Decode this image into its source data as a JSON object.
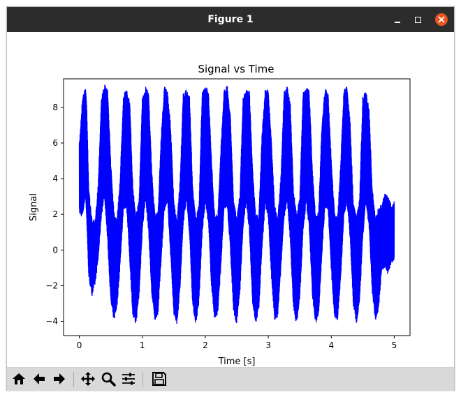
{
  "window": {
    "title": "Figure 1"
  },
  "toolbar": {
    "buttons": [
      {
        "name": "home-icon"
      },
      {
        "name": "back-arrow-icon"
      },
      {
        "name": "forward-arrow-icon"
      },
      {
        "name": "pan-move-icon"
      },
      {
        "name": "zoom-magnifier-icon"
      },
      {
        "name": "configure-subplots-icon"
      },
      {
        "name": "save-floppy-icon"
      }
    ]
  },
  "colors": {
    "titlebar": "#2c2c2c",
    "close": "#e95420",
    "series": "#0000ff",
    "toolbar": "#d9d9d9"
  },
  "chart_data": {
    "type": "line",
    "title": "Signal vs Time",
    "xlabel": "Time [s]",
    "ylabel": "Signal",
    "xlim": [
      -0.25,
      5.25
    ],
    "ylim": [
      -4.8,
      9.6
    ],
    "x_ticks": [
      0,
      1,
      2,
      3,
      4,
      5
    ],
    "x_tick_labels": [
      "0",
      "1",
      "2",
      "3",
      "4",
      "5"
    ],
    "y_ticks": [
      -4,
      -2,
      0,
      2,
      4,
      6,
      8
    ],
    "y_tick_labels": [
      "−4",
      "−2",
      "0",
      "2",
      "4",
      "6",
      "8"
    ],
    "grid": false,
    "series": [
      {
        "color": "#0000ff",
        "description_values": "dense noisy oscillation",
        "x_start": 0,
        "x_end": 5,
        "envelope": {
          "x": [
            0.0,
            0.05,
            0.1,
            0.12,
            0.15,
            0.2,
            0.25,
            0.3,
            0.35,
            0.4,
            0.45,
            0.5,
            0.55,
            0.6,
            0.65,
            0.7,
            0.75,
            0.8,
            0.85,
            0.9,
            0.95,
            1.0,
            1.05,
            1.1,
            1.15,
            1.2,
            1.25,
            1.3,
            1.35,
            1.4,
            1.45,
            1.5,
            1.55,
            1.6,
            1.65,
            1.7,
            1.75,
            1.8,
            1.85,
            1.9,
            1.95,
            2.0,
            2.05,
            2.1,
            2.15,
            2.2,
            2.25,
            2.3,
            2.35,
            2.4,
            2.45,
            2.5,
            2.55,
            2.6,
            2.65,
            2.7,
            2.75,
            2.8,
            2.85,
            2.9,
            2.95,
            3.0,
            3.05,
            3.1,
            3.15,
            3.2,
            3.25,
            3.3,
            3.35,
            3.4,
            3.45,
            3.5,
            3.55,
            3.6,
            3.65,
            3.7,
            3.75,
            3.8,
            3.85,
            3.9,
            3.95,
            4.0,
            4.05,
            4.1,
            4.15,
            4.2,
            4.25,
            4.3,
            4.35,
            4.4,
            4.45,
            4.5,
            4.55,
            4.6,
            4.65,
            4.7,
            4.75,
            4.8,
            4.85,
            4.9,
            4.95,
            5.0
          ],
          "upper": [
            6.0,
            8.6,
            9.2,
            8.0,
            3.5,
            1.8,
            1.6,
            3.8,
            8.6,
            9.3,
            9.0,
            5.0,
            2.2,
            1.8,
            4.2,
            8.8,
            9.0,
            8.4,
            3.6,
            2.0,
            3.0,
            8.5,
            9.2,
            9.0,
            4.5,
            2.0,
            2.2,
            6.5,
            9.2,
            9.0,
            7.0,
            2.8,
            1.6,
            4.0,
            8.8,
            9.0,
            8.6,
            3.6,
            1.8,
            2.6,
            8.8,
            9.2,
            9.0,
            5.0,
            2.0,
            2.0,
            6.0,
            9.1,
            9.2,
            7.5,
            2.8,
            1.8,
            3.2,
            8.6,
            9.0,
            9.0,
            4.6,
            2.0,
            2.0,
            6.5,
            9.0,
            9.0,
            6.2,
            2.6,
            1.8,
            4.2,
            8.9,
            9.2,
            8.2,
            3.4,
            2.0,
            3.0,
            8.8,
            9.2,
            9.0,
            4.6,
            2.0,
            2.2,
            7.0,
            9.1,
            8.8,
            5.2,
            2.2,
            1.8,
            5.0,
            9.0,
            9.2,
            7.2,
            2.6,
            2.0,
            3.0,
            8.6,
            9.0,
            8.0,
            3.6,
            1.8,
            2.4,
            2.6,
            3.2,
            3.0,
            2.6,
            2.8
          ],
          "lower": [
            2.0,
            1.8,
            3.0,
            1.4,
            -1.6,
            -2.6,
            -2.0,
            -0.6,
            1.8,
            3.0,
            0.4,
            -3.0,
            -4.0,
            -3.2,
            -0.8,
            2.2,
            2.4,
            -0.6,
            -3.8,
            -4.2,
            -2.6,
            1.0,
            2.8,
            1.0,
            -2.6,
            -4.0,
            -3.6,
            -0.6,
            2.2,
            2.6,
            -0.4,
            -3.6,
            -4.2,
            -2.2,
            1.4,
            2.8,
            0.8,
            -3.2,
            -4.2,
            -3.0,
            0.8,
            2.6,
            1.4,
            -2.2,
            -4.0,
            -3.6,
            -0.8,
            2.2,
            2.4,
            -0.2,
            -3.6,
            -4.2,
            -2.4,
            1.2,
            2.6,
            1.0,
            -3.0,
            -4.2,
            -3.4,
            0.0,
            2.4,
            1.8,
            -1.6,
            -4.0,
            -3.8,
            -1.2,
            1.8,
            2.6,
            0.4,
            -3.4,
            -4.2,
            -2.8,
            0.8,
            2.6,
            1.2,
            -2.6,
            -4.2,
            -3.6,
            -0.4,
            2.4,
            2.2,
            -1.2,
            -3.8,
            -4.0,
            -1.6,
            1.8,
            2.6,
            0.6,
            -3.2,
            -4.2,
            -3.0,
            0.6,
            2.6,
            1.2,
            -2.4,
            -4.0,
            -3.4,
            -1.2,
            -1.0,
            -1.4,
            -0.8,
            -0.6
          ]
        }
      }
    ]
  }
}
